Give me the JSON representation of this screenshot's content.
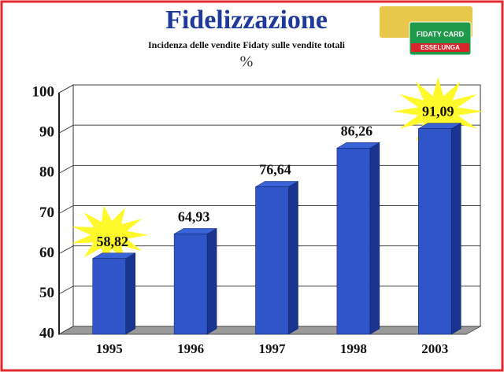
{
  "chart_data": {
    "type": "bar3d",
    "title": "Fidelizzazione",
    "subtitle": "Incidenza delle vendite Fidaty sulle vendite totali",
    "unit_label": "%",
    "badges": [
      "FIDATY CARD",
      "ESSELUNGA"
    ],
    "categories": [
      "1995",
      "1996",
      "1997",
      "1998",
      "2003"
    ],
    "values": [
      58.82,
      64.93,
      76.64,
      86.26,
      91.09
    ],
    "value_labels": [
      "58,82",
      "64,93",
      "76,64",
      "86,26",
      "91,09"
    ],
    "color": "#2f55c8",
    "ylim": [
      40,
      100
    ],
    "yticks": [
      40,
      50,
      60,
      70,
      80,
      90,
      100
    ],
    "grid": true
  }
}
